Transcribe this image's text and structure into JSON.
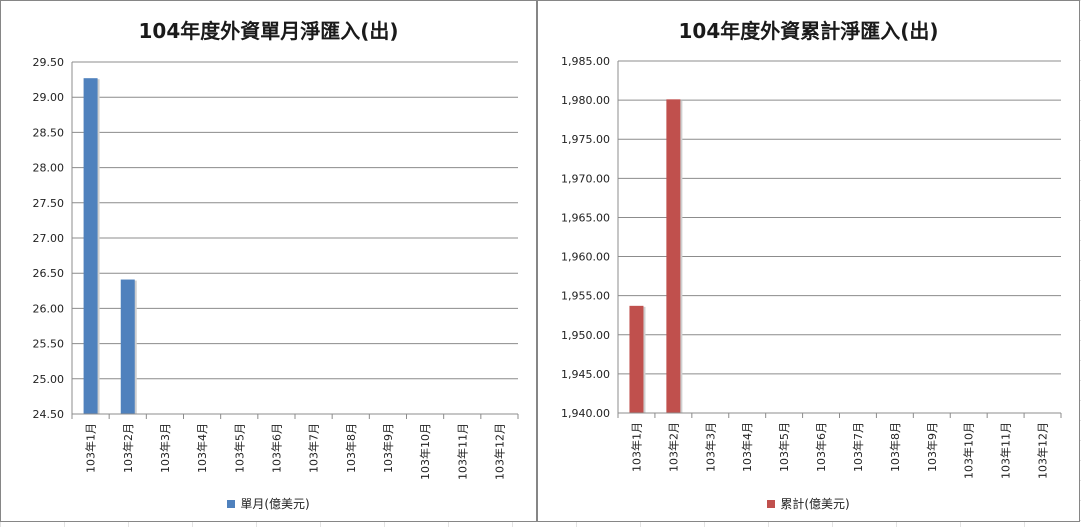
{
  "chart_data": [
    {
      "type": "bar",
      "title": "104年度外資單月淨匯入(出)",
      "categories": [
        "103年1月",
        "103年2月",
        "103年3月",
        "103年4月",
        "103年5月",
        "103年6月",
        "103年7月",
        "103年8月",
        "103年9月",
        "103年10月",
        "103年11月",
        "103年12月"
      ],
      "series": [
        {
          "name": "單月(億美元)",
          "values": [
            29.27,
            26.41,
            null,
            null,
            null,
            null,
            null,
            null,
            null,
            null,
            null,
            null
          ],
          "color": "#4f81bd"
        }
      ],
      "ylim": [
        24.5,
        29.5
      ],
      "yticks": [
        "24.50",
        "25.00",
        "25.50",
        "26.00",
        "26.50",
        "27.00",
        "27.50",
        "28.00",
        "28.50",
        "29.00",
        "29.50"
      ],
      "grid": true,
      "legend": "bottom"
    },
    {
      "type": "bar",
      "title": "104年度外資累計淨匯入(出)",
      "categories": [
        "103年1月",
        "103年2月",
        "103年3月",
        "103年4月",
        "103年5月",
        "103年6月",
        "103年7月",
        "103年8月",
        "103年9月",
        "103年10月",
        "103年11月",
        "103年12月"
      ],
      "series": [
        {
          "name": "累計(億美元)",
          "values": [
            1953.7,
            1980.1,
            null,
            null,
            null,
            null,
            null,
            null,
            null,
            null,
            null,
            null
          ],
          "color": "#c0504d"
        }
      ],
      "ylim": [
        1940,
        1985
      ],
      "yticks": [
        "1,940.00",
        "1,945.00",
        "1,950.00",
        "1,955.00",
        "1,960.00",
        "1,965.00",
        "1,970.00",
        "1,975.00",
        "1,980.00",
        "1,985.00"
      ],
      "grid": true,
      "legend": "bottom"
    }
  ]
}
